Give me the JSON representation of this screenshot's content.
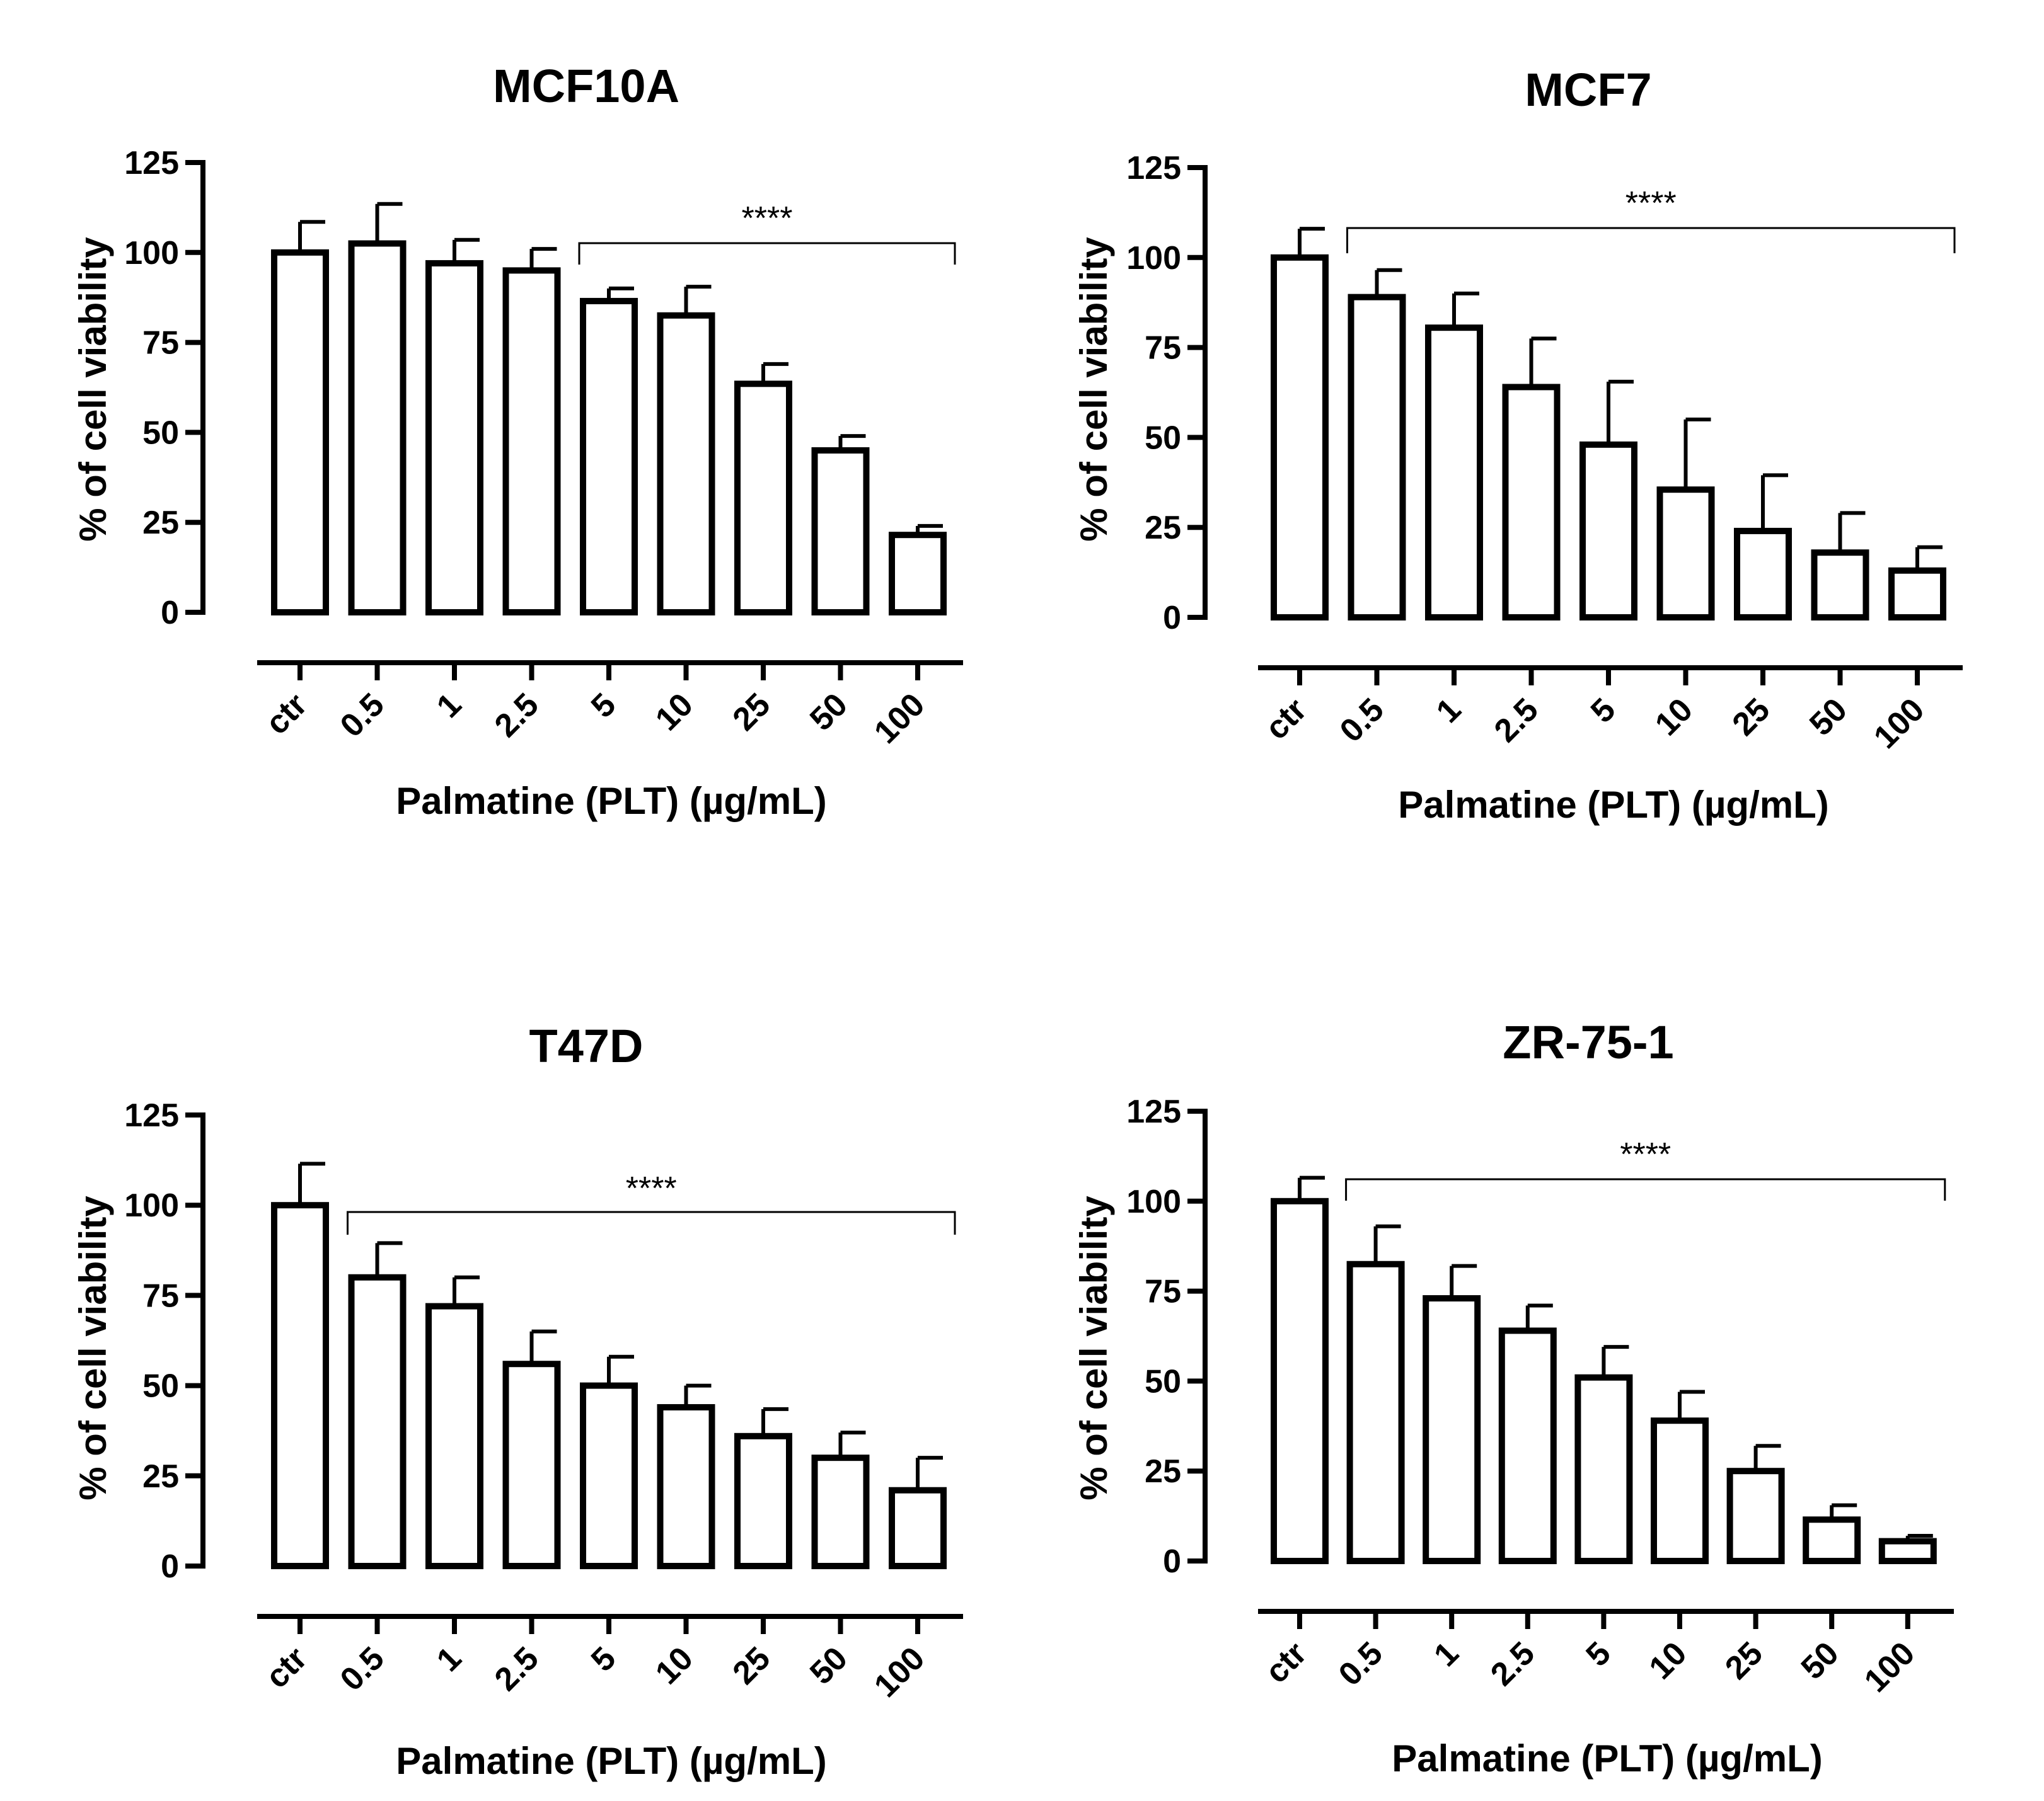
{
  "chart_data": [
    {
      "type": "bar",
      "title": "MCF10A",
      "xlabel": "Palmatine (PLT) (µg/mL)",
      "ylabel": "% of cell viability",
      "categories": [
        "ctr",
        "0.5",
        "1",
        "2.5",
        "5",
        "10",
        "25",
        "50",
        "100"
      ],
      "values": [
        100,
        102.5,
        97,
        95,
        86.5,
        82.5,
        63.5,
        45,
        21.5
      ],
      "errors": [
        8.5,
        11,
        6.5,
        6,
        3.5,
        8,
        5.5,
        4,
        2.5
      ],
      "yticks": [
        0,
        25,
        50,
        75,
        100,
        125
      ],
      "ylim": [
        0,
        125
      ],
      "significance": {
        "label": "****",
        "from": "5",
        "to": "100"
      }
    },
    {
      "type": "bar",
      "title": "MCF7",
      "xlabel": "Palmatine (PLT) (µg/mL)",
      "ylabel": "% of cell viability",
      "categories": [
        "ctr",
        "0.5",
        "1",
        "2.5",
        "5",
        "10",
        "25",
        "50",
        "100"
      ],
      "values": [
        100,
        89,
        80.5,
        64,
        48,
        35.5,
        24,
        18,
        13
      ],
      "errors": [
        8,
        7.5,
        9.5,
        13.5,
        17.5,
        19.5,
        15.5,
        11,
        6.5
      ],
      "yticks": [
        0,
        25,
        50,
        75,
        100,
        125
      ],
      "ylim": [
        0,
        125
      ],
      "significance": {
        "label": "****",
        "from": "0.5",
        "to": "100"
      }
    },
    {
      "type": "bar",
      "title": "T47D",
      "xlabel": "Palmatine (PLT) (µg/mL)",
      "ylabel": "% of cell viability",
      "categories": [
        "ctr",
        "0.5",
        "1",
        "2.5",
        "5",
        "10",
        "25",
        "50",
        "100"
      ],
      "values": [
        100,
        80,
        72,
        56,
        50,
        44,
        36,
        30,
        21
      ],
      "errors": [
        11.5,
        9.5,
        8,
        9,
        8,
        6,
        7.5,
        7,
        9
      ],
      "yticks": [
        0,
        25,
        50,
        75,
        100,
        125
      ],
      "ylim": [
        0,
        125
      ],
      "significance": {
        "label": "****",
        "from": "0.5",
        "to": "100"
      }
    },
    {
      "type": "bar",
      "title": "ZR-75-1",
      "xlabel": "Palmatine (PLT) (µg/mL)",
      "ylabel": "% of cell viability",
      "categories": [
        "ctr",
        "0.5",
        "1",
        "2.5",
        "5",
        "10",
        "25",
        "50",
        "100"
      ],
      "values": [
        100,
        82.5,
        73,
        64,
        51,
        39,
        25,
        11.5,
        5.5
      ],
      "errors": [
        6.5,
        10.5,
        9,
        7,
        8.5,
        8,
        7,
        4,
        1.5
      ],
      "yticks": [
        0,
        25,
        50,
        75,
        100,
        125
      ],
      "ylim": [
        0,
        125
      ],
      "significance": {
        "label": "****",
        "from": "0.5",
        "to": "100"
      }
    }
  ]
}
